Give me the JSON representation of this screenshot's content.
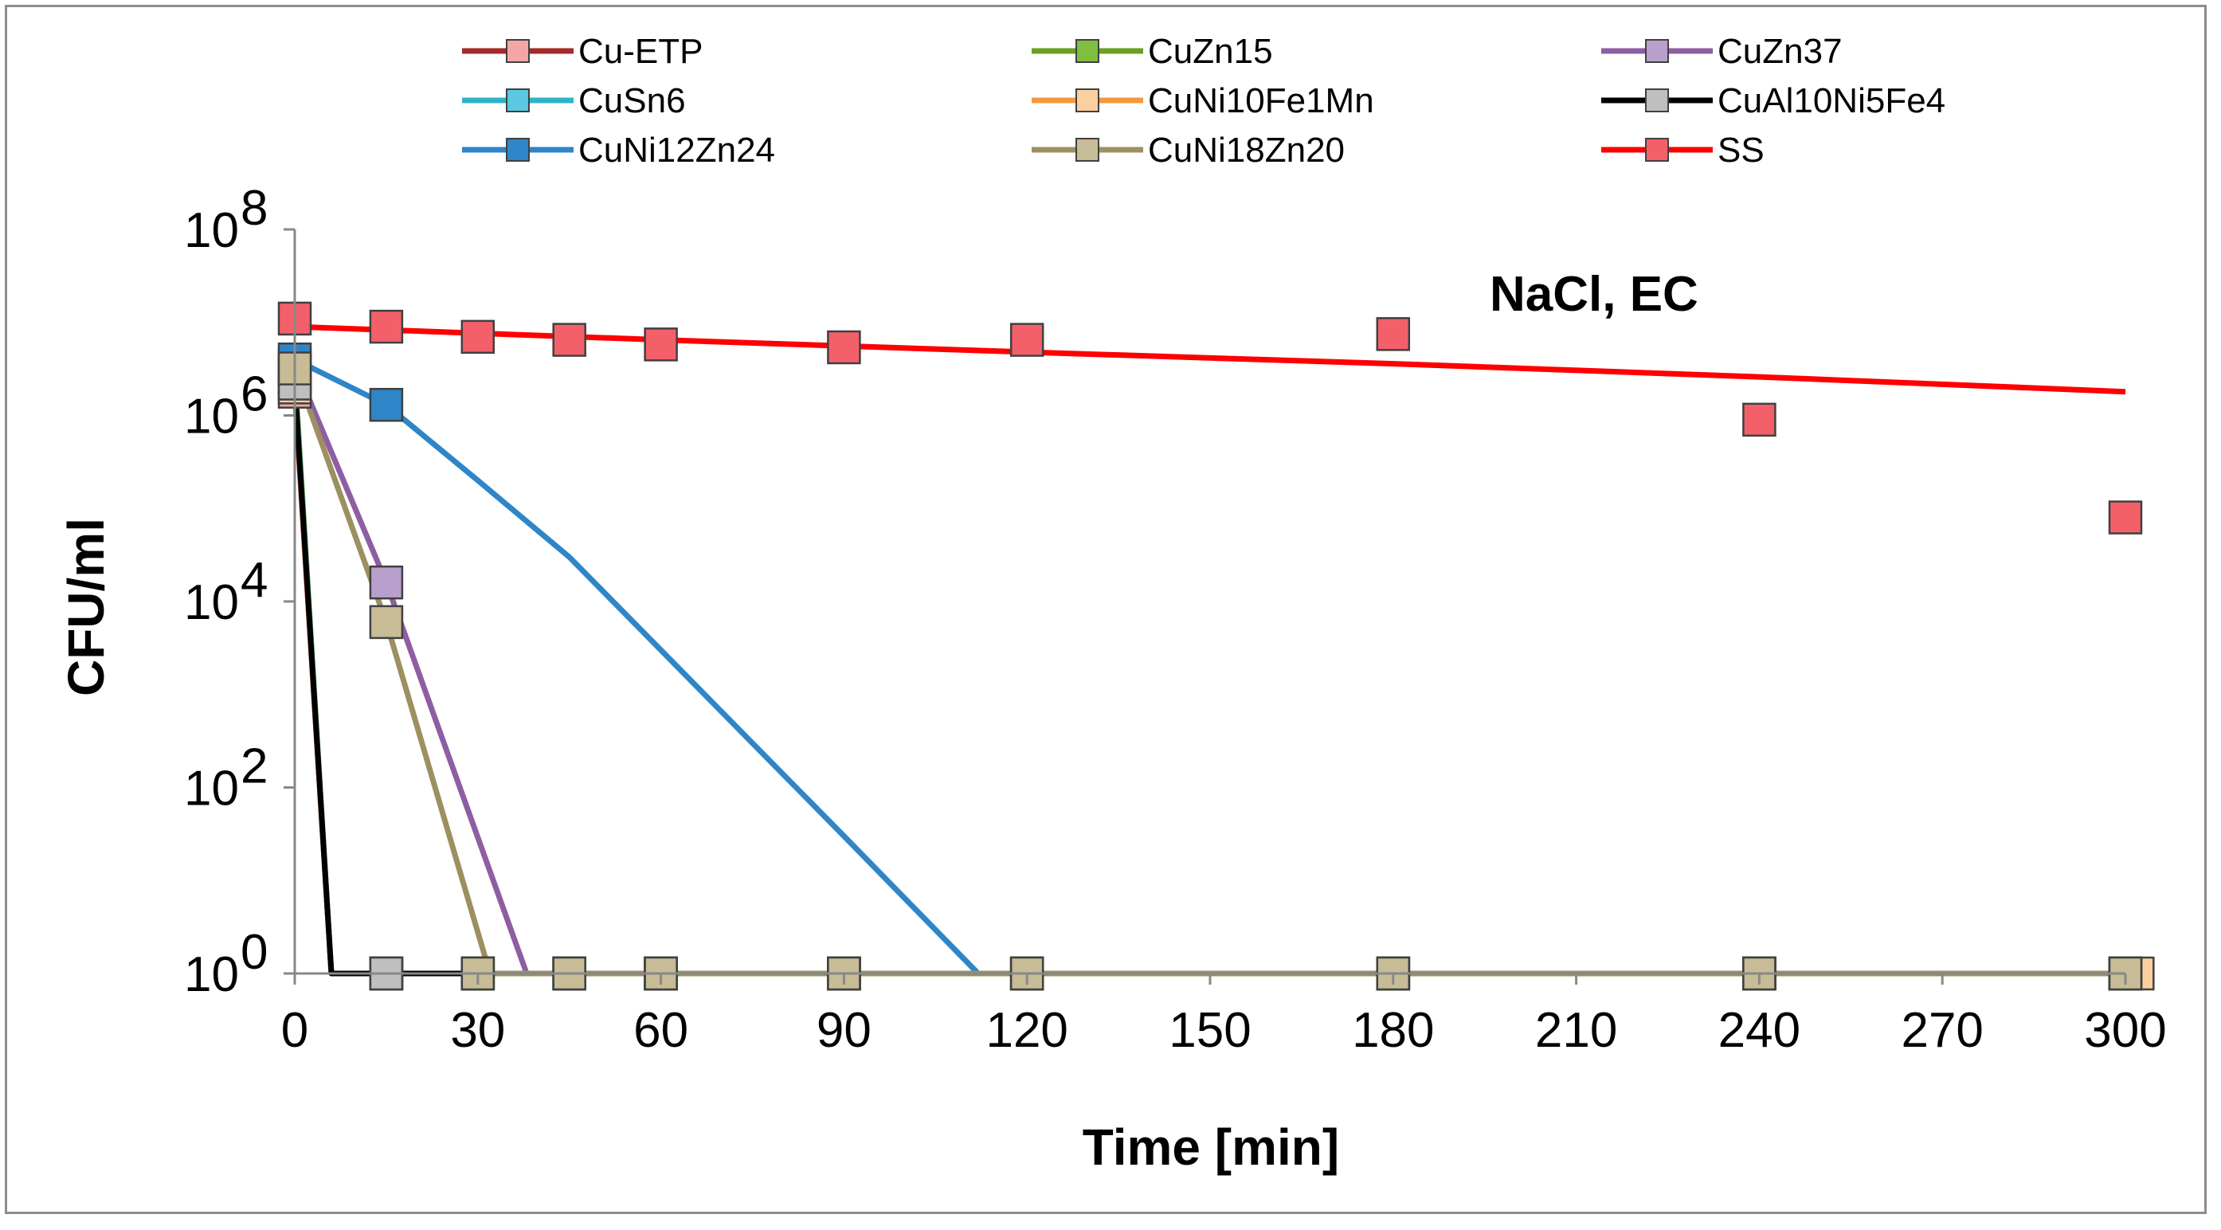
{
  "chart_data": {
    "type": "scatter",
    "title": "",
    "xlabel": "Time [min]",
    "ylabel": "CFU/ml",
    "annotation": "NaCl, EC",
    "xlim": [
      0,
      300
    ],
    "x_ticks": [
      0,
      30,
      60,
      90,
      120,
      150,
      180,
      210,
      240,
      270,
      300
    ],
    "x_tick_labels": [
      "0",
      "30",
      "60",
      "90",
      "120",
      "150",
      "180",
      "210",
      "240",
      "270",
      "300"
    ],
    "ylim": [
      1,
      100000000
    ],
    "y_scale": "log",
    "y_ticks": [
      1,
      100,
      10000,
      1000000,
      100000000
    ],
    "y_tick_base": "10",
    "y_tick_exponents": [
      "0",
      "2",
      "4",
      "6",
      "8"
    ],
    "grid": false,
    "legend_position": "top",
    "series": [
      {
        "name": "Cu-ETP",
        "line_color": "#a52a2a",
        "marker_color": "#f4a6a6",
        "points": [
          [
            0,
            1800000
          ],
          [
            15,
            1
          ],
          [
            30,
            1
          ],
          [
            45,
            1
          ],
          [
            60,
            1
          ],
          [
            90,
            1
          ],
          [
            120,
            1
          ],
          [
            180,
            1
          ],
          [
            240,
            1
          ],
          [
            300,
            1
          ]
        ],
        "trend": [
          [
            0,
            1800000
          ],
          [
            6,
            1
          ],
          [
            300,
            1
          ]
        ]
      },
      {
        "name": "CuZn15",
        "line_color": "#6aa121",
        "marker_color": "#7fbf3f",
        "points": [
          [
            0,
            3000000
          ],
          [
            15,
            1
          ],
          [
            30,
            1
          ],
          [
            45,
            1
          ],
          [
            60,
            1
          ],
          [
            90,
            1
          ],
          [
            120,
            1
          ],
          [
            180,
            1
          ],
          [
            240,
            1
          ],
          [
            300,
            1
          ]
        ],
        "trend": [
          [
            0,
            3000000
          ],
          [
            6,
            1
          ],
          [
            300,
            1
          ]
        ]
      },
      {
        "name": "CuZn37",
        "line_color": "#8e5ea2",
        "marker_color": "#b9a0cc",
        "points": [
          [
            0,
            3500000
          ],
          [
            15,
            16000
          ],
          [
            30,
            1
          ],
          [
            45,
            1
          ],
          [
            60,
            1
          ],
          [
            90,
            1
          ],
          [
            120,
            1
          ],
          [
            180,
            1
          ],
          [
            240,
            1
          ],
          [
            300,
            1
          ]
        ],
        "trend": [
          [
            0,
            3500000
          ],
          [
            15,
            16000
          ],
          [
            38,
            1
          ],
          [
            300,
            1
          ]
        ]
      },
      {
        "name": "CuSn6",
        "line_color": "#2fb3c8",
        "marker_color": "#5ac8e0",
        "points": [
          [
            0,
            2500000
          ],
          [
            15,
            1
          ],
          [
            30,
            1
          ],
          [
            45,
            1
          ],
          [
            60,
            1
          ],
          [
            90,
            1
          ],
          [
            120,
            1
          ],
          [
            180,
            1
          ],
          [
            240,
            1
          ],
          [
            300,
            1
          ]
        ],
        "trend": [
          [
            0,
            2500000
          ],
          [
            6,
            1
          ],
          [
            300,
            1
          ]
        ]
      },
      {
        "name": "CuNi10Fe1Mn",
        "line_color": "#f59a3c",
        "marker_color": "#fbd0a0",
        "points": [
          [
            0,
            2000000
          ],
          [
            15,
            1
          ],
          [
            30,
            1
          ],
          [
            45,
            1
          ],
          [
            60,
            1
          ],
          [
            90,
            1
          ],
          [
            120,
            1
          ],
          [
            180,
            1
          ],
          [
            240,
            1
          ],
          [
            302,
            1
          ]
        ],
        "trend": [
          [
            0,
            2000000
          ],
          [
            6,
            1
          ],
          [
            302,
            1
          ]
        ]
      },
      {
        "name": "CuAl10Ni5Fe4",
        "line_color": "#000000",
        "marker_color": "#bfbfbf",
        "points": [
          [
            0,
            2200000
          ],
          [
            15,
            1
          ],
          [
            30,
            1
          ],
          [
            45,
            1
          ],
          [
            60,
            1
          ],
          [
            90,
            1
          ],
          [
            120,
            1
          ],
          [
            180,
            1
          ],
          [
            240,
            1
          ],
          [
            300,
            1
          ]
        ],
        "trend": [
          [
            0,
            2200000
          ],
          [
            6,
            1
          ],
          [
            30,
            1
          ]
        ]
      },
      {
        "name": "CuNi12Zn24",
        "line_color": "#2e86c8",
        "marker_color": "#2e86c8",
        "points": [
          [
            0,
            4000000
          ],
          [
            15,
            1300000
          ],
          [
            120,
            1
          ],
          [
            180,
            1
          ],
          [
            240,
            1
          ],
          [
            300,
            1
          ]
        ],
        "trend": [
          [
            0,
            4000000
          ],
          [
            15,
            1300000
          ],
          [
            30,
            200000
          ],
          [
            45,
            30000
          ],
          [
            60,
            3000
          ],
          [
            75,
            300
          ],
          [
            90,
            30
          ],
          [
            112,
            1
          ],
          [
            300,
            1
          ]
        ]
      },
      {
        "name": "CuNi18Zn20",
        "line_color": "#9c9060",
        "marker_color": "#c8bc96",
        "points": [
          [
            0,
            3200000
          ],
          [
            15,
            6000
          ],
          [
            30,
            1
          ],
          [
            45,
            1
          ],
          [
            60,
            1
          ],
          [
            90,
            1
          ],
          [
            120,
            1
          ],
          [
            180,
            1
          ],
          [
            240,
            1
          ],
          [
            300,
            1
          ]
        ],
        "trend": [
          [
            0,
            3200000
          ],
          [
            15,
            6000
          ],
          [
            32,
            1
          ],
          [
            300,
            1
          ]
        ]
      },
      {
        "name": "SS",
        "line_color": "#ff0000",
        "marker_color": "#f4606a",
        "points": [
          [
            0,
            11000000
          ],
          [
            15,
            9000000
          ],
          [
            30,
            7000000
          ],
          [
            45,
            6500000
          ],
          [
            60,
            5800000
          ],
          [
            90,
            5400000
          ],
          [
            120,
            6500000
          ],
          [
            180,
            7500000
          ],
          [
            240,
            900000
          ],
          [
            300,
            80000
          ]
        ],
        "trend": [
          [
            0,
            9000000
          ],
          [
            60,
            6500000
          ],
          [
            120,
            4800000
          ],
          [
            180,
            3600000
          ],
          [
            240,
            2600000
          ],
          [
            300,
            1800000
          ]
        ]
      }
    ]
  }
}
